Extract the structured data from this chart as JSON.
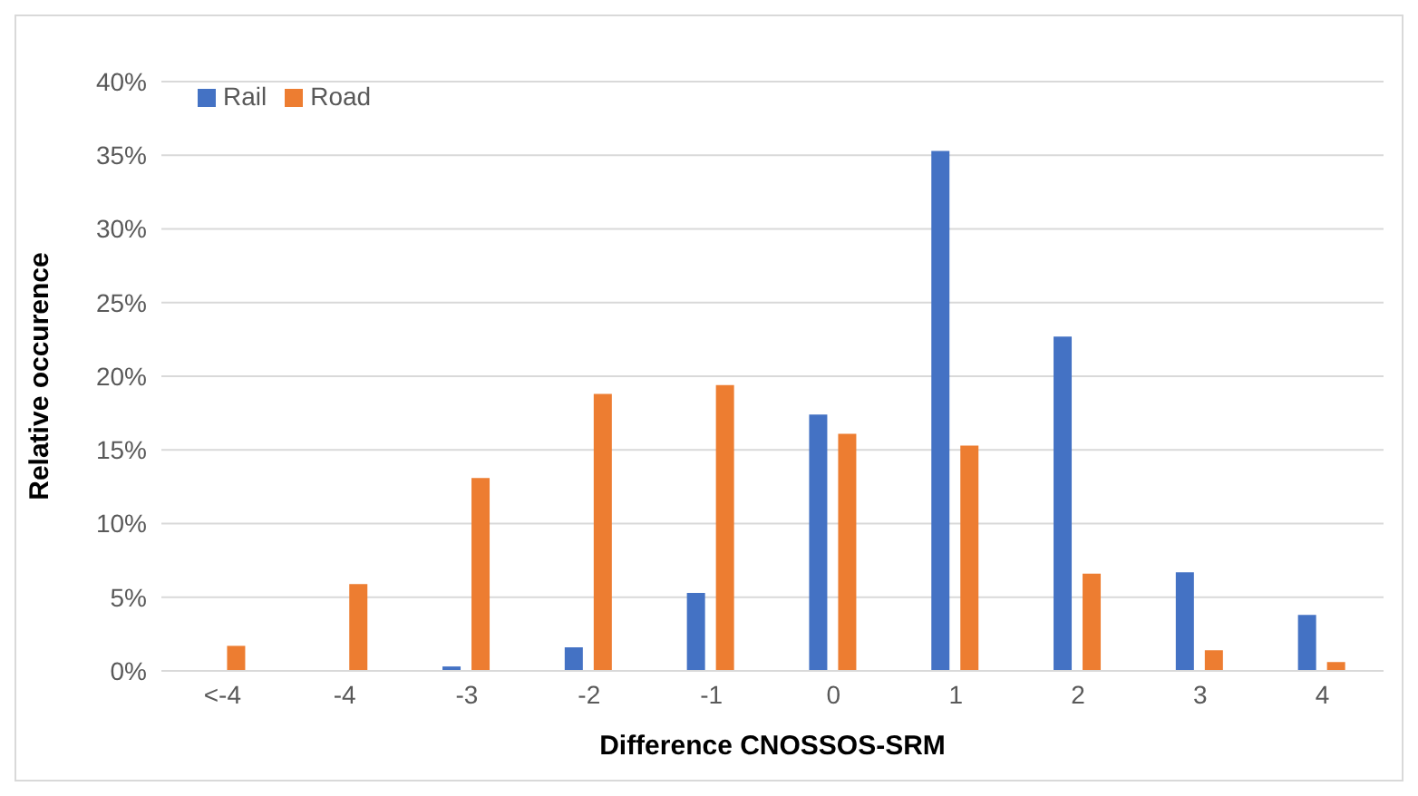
{
  "chart_data": {
    "type": "bar",
    "xlabel": "Difference CNOSSOS-SRM",
    "ylabel": "Relative occurence",
    "categories": [
      "<-4",
      "-4",
      "-3",
      "-2",
      "-1",
      "0",
      "1",
      "2",
      "3",
      "4"
    ],
    "series": [
      {
        "name": "Rail",
        "color": "#4472c4",
        "values": [
          0,
          0,
          0.3,
          1.6,
          5.3,
          17.4,
          35.3,
          22.7,
          6.7,
          3.8
        ]
      },
      {
        "name": "Road",
        "color": "#ed7d31",
        "values": [
          1.7,
          5.9,
          13.1,
          18.8,
          19.4,
          16.1,
          15.3,
          6.6,
          1.4,
          0.6
        ]
      }
    ],
    "ylim": [
      0,
      40
    ],
    "yticks": [
      {
        "value": 0,
        "label": "0%"
      },
      {
        "value": 5,
        "label": "5%"
      },
      {
        "value": 10,
        "label": "10%"
      },
      {
        "value": 15,
        "label": "15%"
      },
      {
        "value": 20,
        "label": "20%"
      },
      {
        "value": 25,
        "label": "25%"
      },
      {
        "value": 30,
        "label": "30%"
      },
      {
        "value": 35,
        "label": "35%"
      },
      {
        "value": 40,
        "label": "40%"
      }
    ],
    "grid": "y",
    "legend": "top left"
  }
}
